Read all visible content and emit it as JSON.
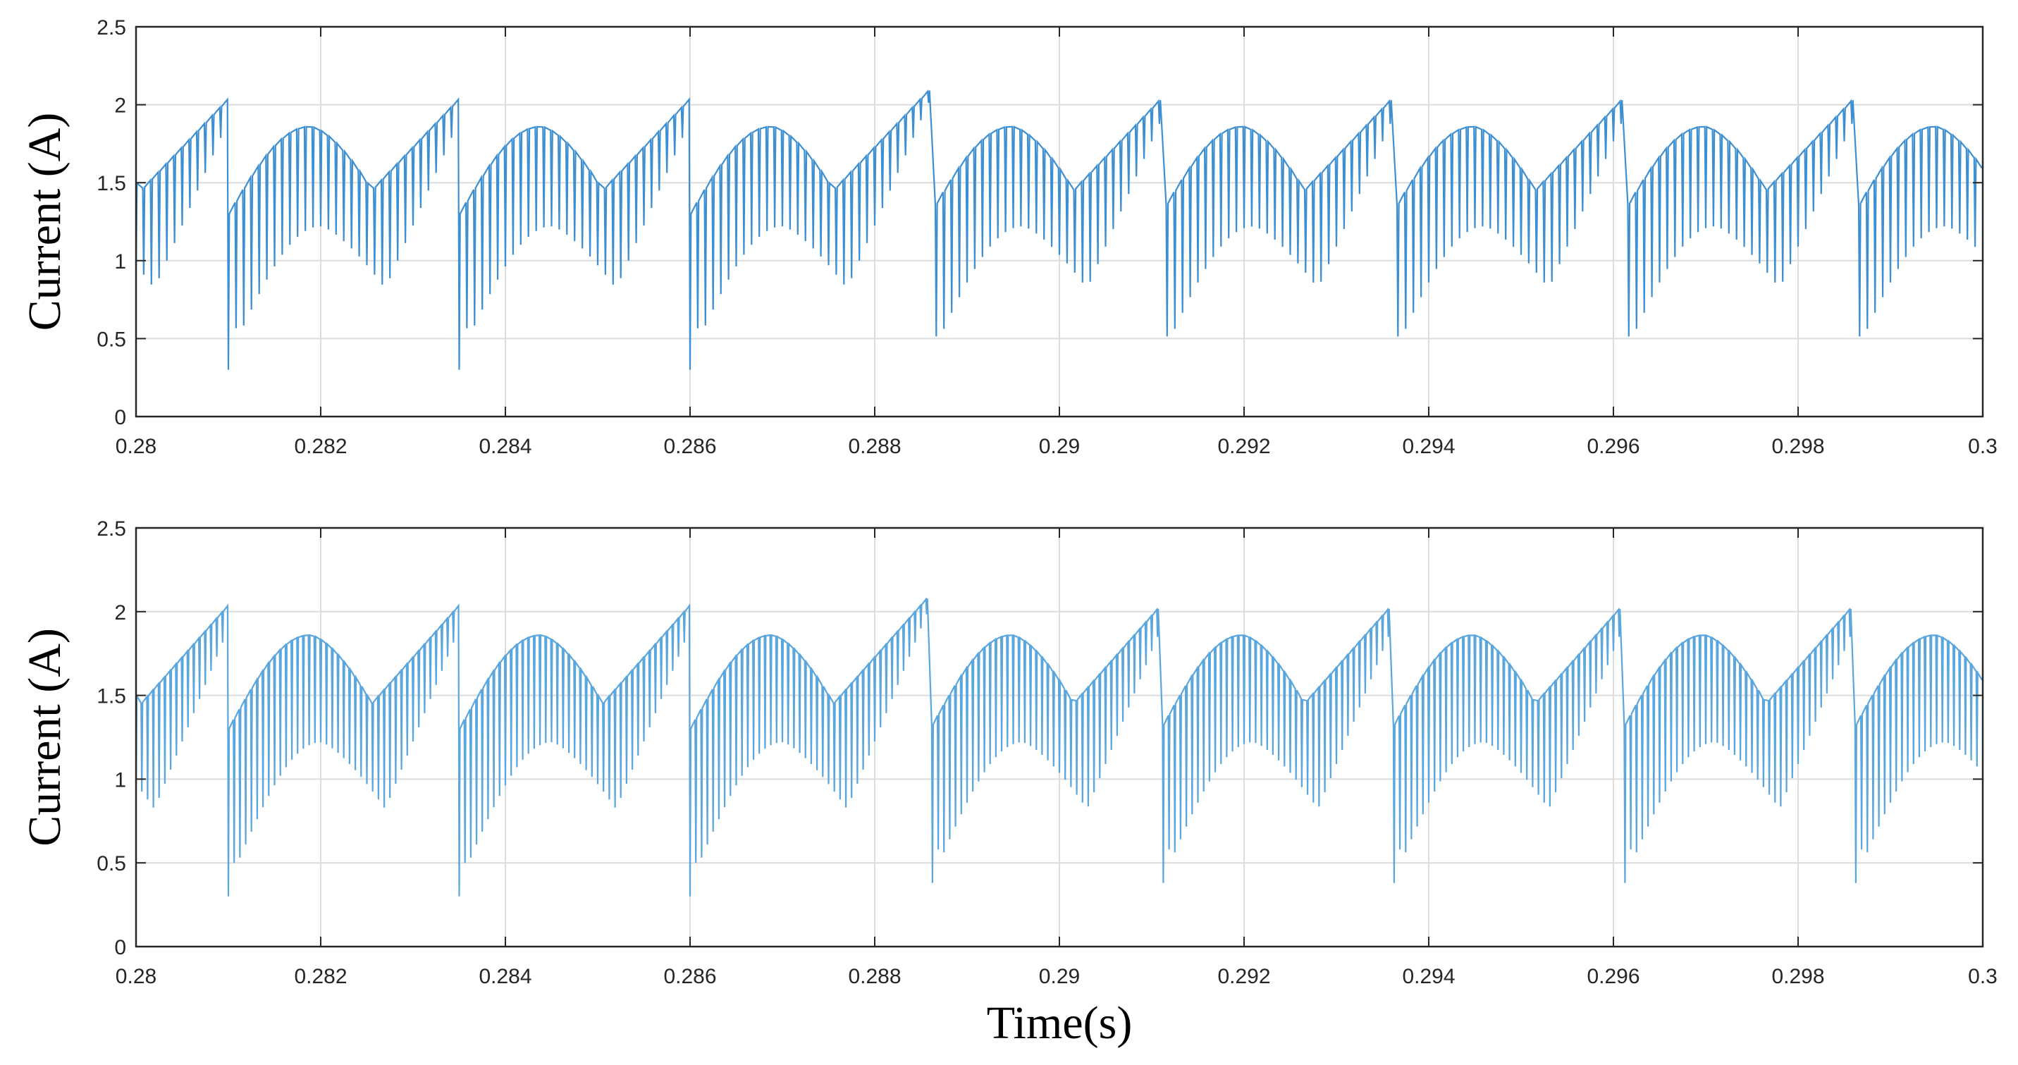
{
  "chart_data": [
    {
      "type": "line",
      "xlabel": "",
      "ylabel": "Current (A)",
      "xlim": [
        0.28,
        0.3
      ],
      "ylim": [
        0,
        2.5
      ],
      "xticks": [
        "0.28",
        "0.282",
        "0.284",
        "0.286",
        "0.288",
        "0.29",
        "0.292",
        "0.294",
        "0.296",
        "0.298",
        "0.3"
      ],
      "yticks": [
        "0",
        "0.5",
        "1",
        "1.5",
        "2",
        "2.5"
      ],
      "grid": true,
      "color": "#3d8fd1",
      "waveform": {
        "description_values": "switching current ripple with low-frequency envelope",
        "envelope_period_s": 0.0025,
        "ripple_pulses_per_envelope": 30,
        "upper_envelope_peak_A": 2.04,
        "upper_envelope_crest_A": 1.86,
        "lower_envelope_crest_A": 1.22,
        "trough_min_A": 0.2,
        "trough_times_s": [
          0.281,
          0.2835,
          0.286,
          0.2886,
          0.2911,
          0.2936,
          0.2961,
          0.2986
        ]
      }
    },
    {
      "type": "line",
      "xlabel": "Time(s)",
      "ylabel": "Current (A)",
      "xlim": [
        0.28,
        0.3
      ],
      "ylim": [
        0,
        2.5
      ],
      "xticks": [
        "0.28",
        "0.282",
        "0.284",
        "0.286",
        "0.288",
        "0.29",
        "0.292",
        "0.294",
        "0.296",
        "0.298",
        "0.3"
      ],
      "yticks": [
        "0",
        "0.5",
        "1",
        "1.5",
        "2",
        "2.5"
      ],
      "grid": true,
      "color": "#5aa6dd",
      "waveform": {
        "envelope_period_s": 0.0025,
        "ripple_pulses_per_envelope": 40,
        "upper_envelope_peak_A": 2.04,
        "upper_envelope_crest_A": 1.86,
        "lower_envelope_crest_A": 1.22,
        "trough_min_A": 0.2,
        "trough_times_s": [
          0.281,
          0.2835,
          0.286,
          0.2886,
          0.2911,
          0.2936,
          0.2961,
          0.2986
        ]
      }
    }
  ]
}
